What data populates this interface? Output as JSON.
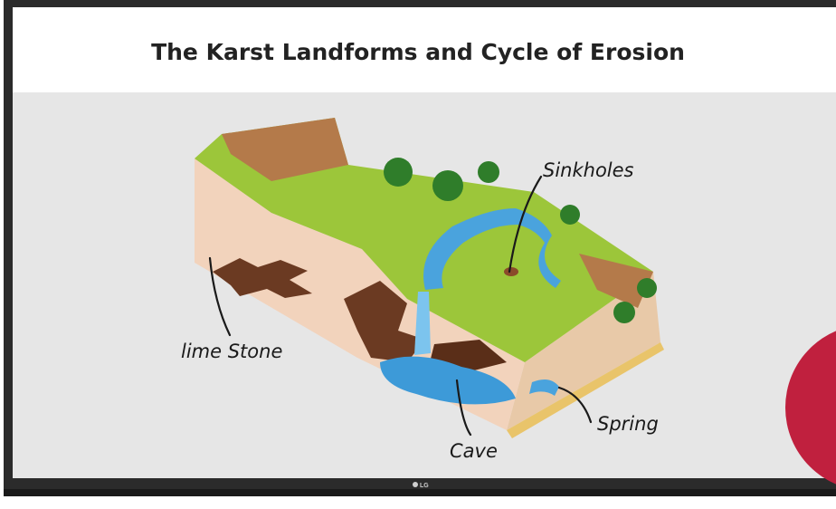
{
  "header": {
    "title": "The Karst Landforms and Cycle of Erosion"
  },
  "labels": {
    "sinkholes": "Sinkholes",
    "limestone": "lime Stone",
    "cave": "Cave",
    "spring": "Spring"
  },
  "brand": "LG"
}
